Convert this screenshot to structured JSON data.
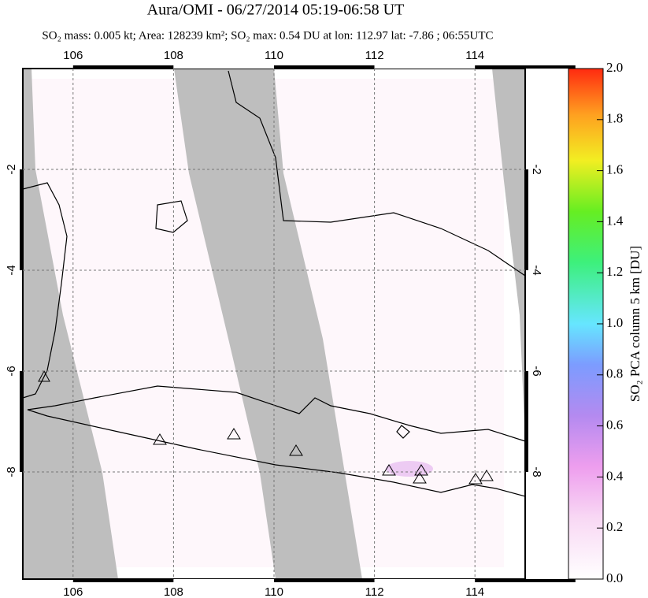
{
  "header": {
    "title": "Aura/OMI - 06/27/2014 05:19-06:58 UT",
    "subtitle": "SO₂ mass: 0.005 kt; Area: 128239 km²; SO₂ max: 0.54 DU at lon: 112.97 lat: -7.86 ; 06:55UTC"
  },
  "map": {
    "xlim": [
      105,
      115
    ],
    "ylim": [
      0,
      -10.125
    ],
    "xticks": [
      106,
      108,
      110,
      112,
      114
    ],
    "yticks": [
      -2,
      -4,
      -6,
      -8
    ]
  },
  "colorbar": {
    "label": "SO₂ PCA column 5 km [DU]",
    "lim": [
      0,
      2
    ],
    "ticks": [
      {
        "value": 0,
        "label": "0.0"
      },
      {
        "value": 0.2,
        "label": "0.2"
      },
      {
        "value": 0.4,
        "label": "0.4"
      },
      {
        "value": 0.6,
        "label": "0.6"
      },
      {
        "value": 0.8,
        "label": "0.8"
      },
      {
        "value": 1,
        "label": "1.0"
      },
      {
        "value": 1.2,
        "label": "1.2"
      },
      {
        "value": 1.4,
        "label": "1.4"
      },
      {
        "value": 1.6,
        "label": "1.6"
      },
      {
        "value": 1.8,
        "label": "1.8"
      },
      {
        "value": 2,
        "label": "2.0"
      }
    ]
  }
}
